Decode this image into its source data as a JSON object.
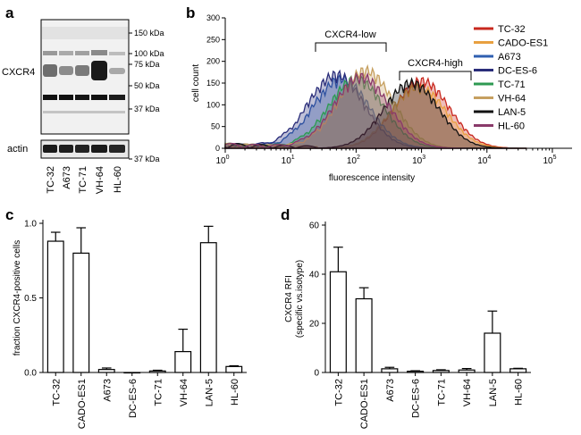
{
  "panels": {
    "a": {
      "label": "a",
      "kda_labels": [
        "150 kDa",
        "100 kDa",
        "75 kDa",
        "50 kDa",
        "37 kDa"
      ],
      "protein_label": "CXCR4",
      "loading_label": "actin",
      "loading_kda": "37 kDa",
      "lanes": [
        "TC-32",
        "A673",
        "TC-71",
        "VH-64",
        "HL-60"
      ]
    },
    "b": {
      "label": "b"
    },
    "c": {
      "label": "c"
    },
    "d": {
      "label": "d"
    }
  },
  "chart_data": [
    {
      "id": "b",
      "type": "area",
      "xlabel": "fluorescence intensity",
      "ylabel": "cell count",
      "xscale": "log",
      "xlim": [
        1,
        200000
      ],
      "ylim": [
        0,
        300
      ],
      "xticks": [
        "10^0",
        "10^1",
        "10^2",
        "10^3",
        "10^4",
        "10^5"
      ],
      "yticks": [
        0,
        50,
        100,
        150,
        200,
        250,
        300
      ],
      "annotations": [
        "CXCR4-low",
        "CXCR4-high"
      ],
      "legend_position": "top-right",
      "series": [
        {
          "name": "TC-32",
          "color": "#c8281e",
          "peak_x": 1000,
          "peak_y": 165
        },
        {
          "name": "CADO-ES1",
          "color": "#e8a040",
          "peak_x": 900,
          "peak_y": 150
        },
        {
          "name": "A673",
          "color": "#2f5fb0",
          "peak_x": 60,
          "peak_y": 170
        },
        {
          "name": "DC-ES-6",
          "color": "#2a2d7a",
          "peak_x": 50,
          "peak_y": 180
        },
        {
          "name": "TC-71",
          "color": "#2e9a52",
          "peak_x": 100,
          "peak_y": 170
        },
        {
          "name": "VH-64",
          "color": "#c6a060",
          "peak_x": 140,
          "peak_y": 190
        },
        {
          "name": "LAN-5",
          "color": "#111111",
          "peak_x": 700,
          "peak_y": 160
        },
        {
          "name": "HL-60",
          "color": "#8a3a6a",
          "peak_x": 120,
          "peak_y": 175
        }
      ]
    },
    {
      "id": "c",
      "type": "bar",
      "ylabel": "fraction CXCR4-positive cells",
      "ylim": [
        0,
        1.0
      ],
      "yticks": [
        "0.0",
        "0.5",
        "1.0"
      ],
      "categories": [
        "TC-32",
        "CADO-ES1",
        "A673",
        "DC-ES-6",
        "TC-71",
        "VH-64",
        "LAN-5",
        "HL-60"
      ],
      "values": [
        0.88,
        0.8,
        0.02,
        0.0,
        0.01,
        0.14,
        0.87,
        0.04
      ],
      "errors": [
        0.06,
        0.17,
        0.01,
        0.0,
        0.005,
        0.15,
        0.11,
        0.005
      ]
    },
    {
      "id": "d",
      "type": "bar",
      "ylabel": "CXCR4 RFI",
      "ylabel2": "(specific vs.isotype)",
      "ylim": [
        0,
        60
      ],
      "yticks": [
        "0",
        "20",
        "40",
        "60"
      ],
      "categories": [
        "TC-32",
        "CADO-ES1",
        "A673",
        "DC-ES-6",
        "TC-71",
        "VH-64",
        "LAN-5",
        "HL-60"
      ],
      "values": [
        41,
        30,
        1.5,
        0.5,
        0.8,
        1.0,
        16,
        1.5
      ],
      "errors": [
        10,
        4.5,
        0.6,
        0.2,
        0.3,
        0.6,
        9,
        0.2
      ]
    }
  ]
}
